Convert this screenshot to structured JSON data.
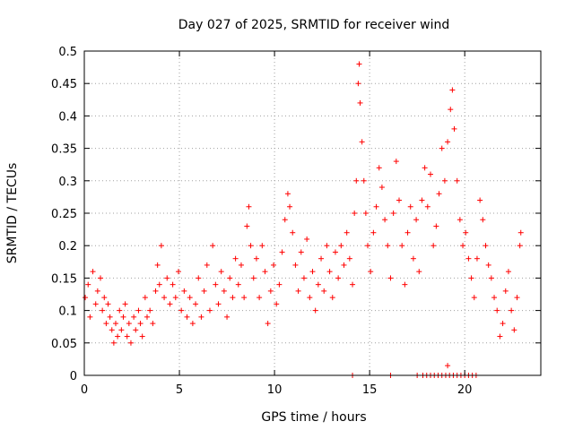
{
  "chart_data": {
    "type": "scatter",
    "title": "Day 027 of 2025, SRMTID for receiver wind",
    "xlabel": "GPS time / hours",
    "ylabel": "SRMTID / TECUs",
    "xlim": [
      0,
      24
    ],
    "ylim": [
      0,
      0.5
    ],
    "xticks": [
      0,
      5,
      10,
      15,
      20
    ],
    "xtick_labels": [
      "0",
      "5",
      "10",
      "15",
      "20"
    ],
    "yticks": [
      0,
      0.05,
      0.1,
      0.15,
      0.2,
      0.25,
      0.3,
      0.35,
      0.4,
      0.45,
      0.5
    ],
    "ytick_labels": [
      "0",
      "0.05",
      "0.1",
      "0.15",
      "0.2",
      "0.25",
      "0.3",
      "0.35",
      "0.4",
      "0.45",
      "0.5"
    ],
    "grid": true,
    "marker": "+",
    "color": "#ff0000",
    "series": [
      {
        "name": "SRMTID",
        "points": [
          [
            0.05,
            0.12
          ],
          [
            0.2,
            0.14
          ],
          [
            0.3,
            0.09
          ],
          [
            0.45,
            0.16
          ],
          [
            0.6,
            0.11
          ],
          [
            0.7,
            0.13
          ],
          [
            0.85,
            0.15
          ],
          [
            0.95,
            0.1
          ],
          [
            1.05,
            0.12
          ],
          [
            1.15,
            0.08
          ],
          [
            1.25,
            0.11
          ],
          [
            1.35,
            0.09
          ],
          [
            1.45,
            0.07
          ],
          [
            1.55,
            0.05
          ],
          [
            1.65,
            0.08
          ],
          [
            1.75,
            0.06
          ],
          [
            1.85,
            0.1
          ],
          [
            1.95,
            0.07
          ],
          [
            2.05,
            0.09
          ],
          [
            2.15,
            0.11
          ],
          [
            2.25,
            0.06
          ],
          [
            2.35,
            0.08
          ],
          [
            2.45,
            0.05
          ],
          [
            2.6,
            0.09
          ],
          [
            2.7,
            0.07
          ],
          [
            2.85,
            0.1
          ],
          [
            2.95,
            0.08
          ],
          [
            3.05,
            0.06
          ],
          [
            3.2,
            0.12
          ],
          [
            3.3,
            0.09
          ],
          [
            3.45,
            0.1
          ],
          [
            3.6,
            0.08
          ],
          [
            3.75,
            0.13
          ],
          [
            3.85,
            0.17
          ],
          [
            3.95,
            0.14
          ],
          [
            4.05,
            0.2
          ],
          [
            4.2,
            0.12
          ],
          [
            4.35,
            0.15
          ],
          [
            4.5,
            0.11
          ],
          [
            4.65,
            0.14
          ],
          [
            4.8,
            0.12
          ],
          [
            4.95,
            0.16
          ],
          [
            5.1,
            0.1
          ],
          [
            5.25,
            0.13
          ],
          [
            5.4,
            0.09
          ],
          [
            5.55,
            0.12
          ],
          [
            5.7,
            0.08
          ],
          [
            5.85,
            0.11
          ],
          [
            6.0,
            0.15
          ],
          [
            6.15,
            0.09
          ],
          [
            6.3,
            0.13
          ],
          [
            6.45,
            0.17
          ],
          [
            6.6,
            0.1
          ],
          [
            6.75,
            0.2
          ],
          [
            6.9,
            0.14
          ],
          [
            7.05,
            0.11
          ],
          [
            7.2,
            0.16
          ],
          [
            7.35,
            0.13
          ],
          [
            7.5,
            0.09
          ],
          [
            7.65,
            0.15
          ],
          [
            7.8,
            0.12
          ],
          [
            7.95,
            0.18
          ],
          [
            8.1,
            0.14
          ],
          [
            8.25,
            0.17
          ],
          [
            8.4,
            0.12
          ],
          [
            8.55,
            0.23
          ],
          [
            8.65,
            0.26
          ],
          [
            8.75,
            0.2
          ],
          [
            8.9,
            0.15
          ],
          [
            9.05,
            0.18
          ],
          [
            9.2,
            0.12
          ],
          [
            9.35,
            0.2
          ],
          [
            9.5,
            0.16
          ],
          [
            9.65,
            0.08
          ],
          [
            9.8,
            0.13
          ],
          [
            9.95,
            0.17
          ],
          [
            10.1,
            0.11
          ],
          [
            10.25,
            0.14
          ],
          [
            10.4,
            0.19
          ],
          [
            10.55,
            0.24
          ],
          [
            10.7,
            0.28
          ],
          [
            10.8,
            0.26
          ],
          [
            10.95,
            0.22
          ],
          [
            11.1,
            0.17
          ],
          [
            11.25,
            0.13
          ],
          [
            11.4,
            0.19
          ],
          [
            11.55,
            0.15
          ],
          [
            11.7,
            0.21
          ],
          [
            11.85,
            0.12
          ],
          [
            12.0,
            0.16
          ],
          [
            12.15,
            0.1
          ],
          [
            12.3,
            0.14
          ],
          [
            12.45,
            0.18
          ],
          [
            12.6,
            0.13
          ],
          [
            12.75,
            0.2
          ],
          [
            12.9,
            0.16
          ],
          [
            13.05,
            0.12
          ],
          [
            13.2,
            0.19
          ],
          [
            13.35,
            0.15
          ],
          [
            13.5,
            0.2
          ],
          [
            13.65,
            0.17
          ],
          [
            13.8,
            0.22
          ],
          [
            13.95,
            0.18
          ],
          [
            14.1,
            0.14
          ],
          [
            14.2,
            0.25
          ],
          [
            14.3,
            0.3
          ],
          [
            14.4,
            0.45
          ],
          [
            14.45,
            0.48
          ],
          [
            14.5,
            0.42
          ],
          [
            14.6,
            0.36
          ],
          [
            14.7,
            0.3
          ],
          [
            14.8,
            0.25
          ],
          [
            14.9,
            0.2
          ],
          [
            15.05,
            0.16
          ],
          [
            15.2,
            0.22
          ],
          [
            15.35,
            0.26
          ],
          [
            15.5,
            0.32
          ],
          [
            15.65,
            0.29
          ],
          [
            15.8,
            0.24
          ],
          [
            15.95,
            0.2
          ],
          [
            16.1,
            0.15
          ],
          [
            16.25,
            0.25
          ],
          [
            16.4,
            0.33
          ],
          [
            16.55,
            0.27
          ],
          [
            16.7,
            0.2
          ],
          [
            16.85,
            0.14
          ],
          [
            17.0,
            0.22
          ],
          [
            17.15,
            0.26
          ],
          [
            17.3,
            0.18
          ],
          [
            17.45,
            0.24
          ],
          [
            17.6,
            0.16
          ],
          [
            17.75,
            0.27
          ],
          [
            17.9,
            0.32
          ],
          [
            18.05,
            0.26
          ],
          [
            18.2,
            0.31
          ],
          [
            18.35,
            0.2
          ],
          [
            18.5,
            0.23
          ],
          [
            18.65,
            0.28
          ],
          [
            18.8,
            0.35
          ],
          [
            18.95,
            0.3
          ],
          [
            19.1,
            0.36
          ],
          [
            19.25,
            0.41
          ],
          [
            19.35,
            0.44
          ],
          [
            19.45,
            0.38
          ],
          [
            19.6,
            0.3
          ],
          [
            19.75,
            0.24
          ],
          [
            19.9,
            0.2
          ],
          [
            20.05,
            0.22
          ],
          [
            20.2,
            0.18
          ],
          [
            20.35,
            0.15
          ],
          [
            20.5,
            0.12
          ],
          [
            20.65,
            0.18
          ],
          [
            20.8,
            0.27
          ],
          [
            20.95,
            0.24
          ],
          [
            21.1,
            0.2
          ],
          [
            21.25,
            0.17
          ],
          [
            21.4,
            0.15
          ],
          [
            21.55,
            0.12
          ],
          [
            21.7,
            0.1
          ],
          [
            21.85,
            0.06
          ],
          [
            22.0,
            0.08
          ],
          [
            22.15,
            0.13
          ],
          [
            22.3,
            0.16
          ],
          [
            22.45,
            0.1
          ],
          [
            22.6,
            0.07
          ],
          [
            22.75,
            0.12
          ],
          [
            22.9,
            0.2
          ],
          [
            22.95,
            0.22
          ],
          [
            14.1,
            0.0
          ],
          [
            16.1,
            0.0
          ],
          [
            17.5,
            0.0
          ],
          [
            17.8,
            0.0
          ],
          [
            18.0,
            0.0
          ],
          [
            18.2,
            0.0
          ],
          [
            18.4,
            0.0
          ],
          [
            18.6,
            0.0
          ],
          [
            18.8,
            0.0
          ],
          [
            19.0,
            0.0
          ],
          [
            19.2,
            0.0
          ],
          [
            19.4,
            0.0
          ],
          [
            19.6,
            0.0
          ],
          [
            19.8,
            0.0
          ],
          [
            20.0,
            0.0
          ],
          [
            20.2,
            0.0
          ],
          [
            20.4,
            0.0
          ],
          [
            20.6,
            0.0
          ],
          [
            19.1,
            0.015
          ]
        ]
      }
    ]
  }
}
